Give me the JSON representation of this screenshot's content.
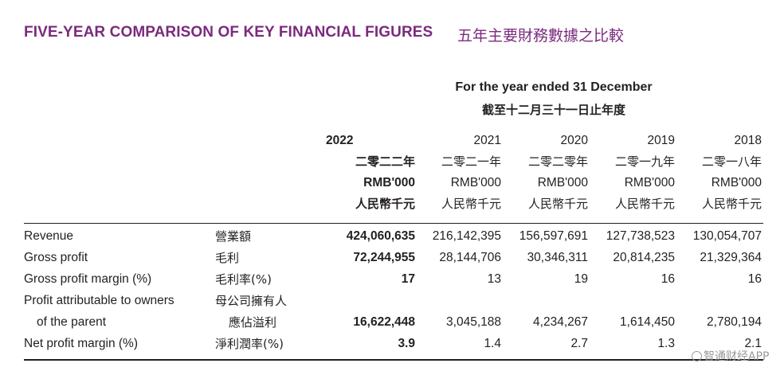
{
  "title_en": "FIVE-YEAR COMPARISON OF KEY FINANCIAL FIGURES",
  "title_zh": "五年主要財務數據之比較",
  "period_en": "For the year ended 31 December",
  "period_zh": "截至十二月三十一日止年度",
  "columns": [
    {
      "year": "2022",
      "year_zh": "二零二二年",
      "unit": "RMB'000",
      "unit_zh": "人民幣千元"
    },
    {
      "year": "2021",
      "year_zh": "二零二一年",
      "unit": "RMB'000",
      "unit_zh": "人民幣千元"
    },
    {
      "year": "2020",
      "year_zh": "二零二零年",
      "unit": "RMB'000",
      "unit_zh": "人民幣千元"
    },
    {
      "year": "2019",
      "year_zh": "二零一九年",
      "unit": "RMB'000",
      "unit_zh": "人民幣千元"
    },
    {
      "year": "2018",
      "year_zh": "二零一八年",
      "unit": "RMB'000",
      "unit_zh": "人民幣千元"
    }
  ],
  "rows": [
    {
      "label_en": "Revenue",
      "label_zh": "營業額",
      "values": [
        "424,060,635",
        "216,142,395",
        "156,597,691",
        "127,738,523",
        "130,054,707"
      ]
    },
    {
      "label_en": "Gross profit",
      "label_zh": "毛利",
      "values": [
        "72,244,955",
        "28,144,706",
        "30,346,311",
        "20,814,235",
        "21,329,364"
      ]
    },
    {
      "label_en": "Gross profit margin (%)",
      "label_zh": "毛利率(%)",
      "values": [
        "17",
        "13",
        "19",
        "16",
        "16"
      ]
    },
    {
      "label_en": "Profit attributable to owners",
      "label_en_2": "of the parent",
      "label_zh": "母公司擁有人",
      "label_zh_2": "應佔溢利",
      "values": [
        "16,622,448",
        "3,045,188",
        "4,234,267",
        "1,614,450",
        "2,780,194"
      ]
    },
    {
      "label_en": "Net profit margin (%)",
      "label_zh": "淨利潤率(%)",
      "values": [
        "3.9",
        "1.4",
        "2.7",
        "1.3",
        "2.1"
      ]
    }
  ],
  "watermark": "智通财经APP"
}
